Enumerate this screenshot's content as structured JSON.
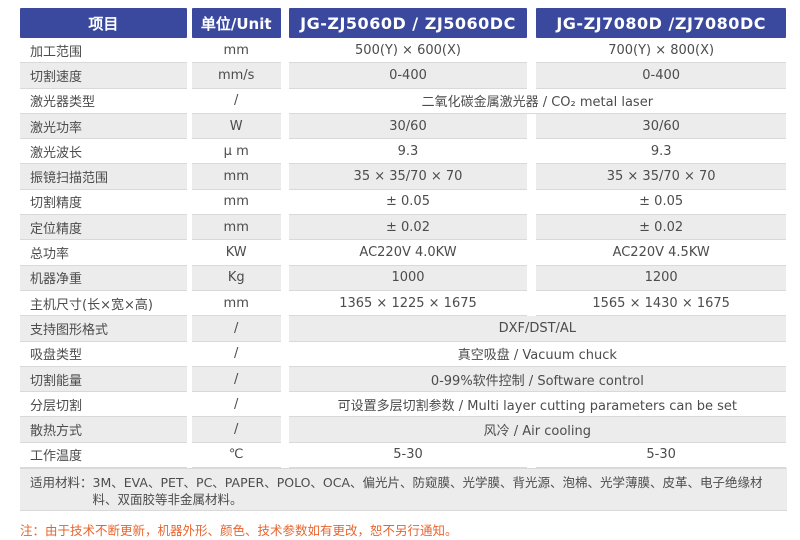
{
  "table": {
    "header": {
      "item_label": "项目",
      "unit_label": "单位/Unit",
      "model_1": "JG-ZJ5060D / ZJ5060DC",
      "model_2": "JG-ZJ7080D /ZJ7080DC"
    },
    "rows": [
      {
        "label": "加工范围",
        "unit": "mm",
        "values": [
          "500(Y) × 600(X)",
          "700(Y) × 800(X)"
        ]
      },
      {
        "label": "切割速度",
        "unit": "mm/s",
        "values": [
          "0-400",
          "0-400"
        ]
      },
      {
        "label": "激光器类型",
        "unit": "/",
        "span": "二氧化碳金属激光器 / CO₂ metal laser"
      },
      {
        "label": "激光功率",
        "unit": "W",
        "values": [
          "30/60",
          "30/60"
        ]
      },
      {
        "label": "激光波长",
        "unit": "μ m",
        "values": [
          "9.3",
          "9.3"
        ]
      },
      {
        "label": "振镜扫描范围",
        "unit": "mm",
        "values": [
          "35 × 35/70 × 70",
          "35 × 35/70 × 70"
        ]
      },
      {
        "label": "切割精度",
        "unit": "mm",
        "values": [
          "± 0.05",
          "± 0.05"
        ]
      },
      {
        "label": "定位精度",
        "unit": "mm",
        "values": [
          "± 0.02",
          "± 0.02"
        ]
      },
      {
        "label": "总功率",
        "unit": "KW",
        "values": [
          "AC220V 4.0KW",
          "AC220V 4.5KW"
        ]
      },
      {
        "label": "机器净重",
        "unit": "Kg",
        "values": [
          "1000",
          "1200"
        ]
      },
      {
        "label": "主机尺寸(长×宽×高)",
        "unit": "mm",
        "values": [
          "1365 × 1225 × 1675",
          "1565 × 1430 × 1675"
        ]
      },
      {
        "label": "支持图形格式",
        "unit": "/",
        "span": "DXF/DST/AL"
      },
      {
        "label": "吸盘类型",
        "unit": "/",
        "span": "真空吸盘 / Vacuum chuck"
      },
      {
        "label": "切割能量",
        "unit": "/",
        "span": "0-99%软件控制 / Software control"
      },
      {
        "label": "分层切割",
        "unit": "/",
        "span": "可设置多层切割参数 / Multi layer cutting parameters can be set"
      },
      {
        "label": "散热方式",
        "unit": "/",
        "span": "风冷 / Air cooling"
      },
      {
        "label": "工作温度",
        "unit": "℃",
        "values": [
          "5-30",
          "5-30"
        ]
      }
    ],
    "materials_row": {
      "label": "适用材料：",
      "text": "3M、EVA、PET、PC、PAPER、POLO、OCA、偏光片、防窥膜、光学膜、背光源、泡棉、光学薄膜、皮革、电子绝缘材料、双面胶等非金属材料。"
    },
    "note": "注：由于技术不断更新，机器外形、颜色、技术参数如有更改，恕不另行通知。"
  },
  "colors": {
    "header_bg": "#3a499e",
    "alt_row_bg": "#ececec",
    "line": "#d9d9d9",
    "text": "#4c4c4c",
    "note": "#e8652e"
  }
}
